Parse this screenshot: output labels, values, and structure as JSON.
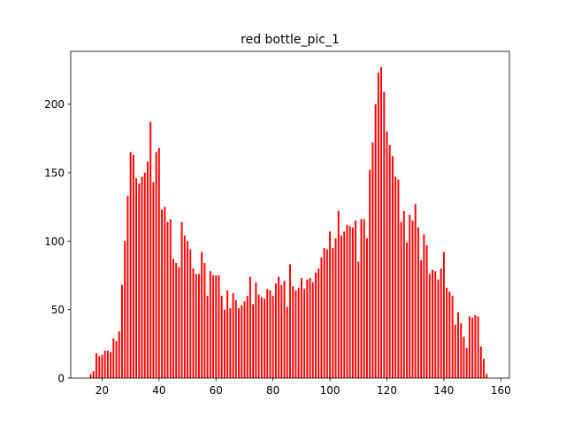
{
  "chart_data": {
    "type": "bar",
    "title": "red bottle_pic_1",
    "color": "#ff0000",
    "x": [
      16,
      17,
      18,
      19,
      20,
      21,
      22,
      23,
      24,
      25,
      26,
      27,
      28,
      29,
      30,
      31,
      32,
      33,
      34,
      35,
      36,
      37,
      38,
      39,
      40,
      41,
      42,
      43,
      44,
      45,
      46,
      47,
      48,
      49,
      50,
      51,
      52,
      53,
      54,
      55,
      56,
      57,
      58,
      59,
      60,
      61,
      62,
      63,
      64,
      65,
      66,
      67,
      68,
      69,
      70,
      71,
      72,
      73,
      74,
      75,
      76,
      77,
      78,
      79,
      80,
      81,
      82,
      83,
      84,
      85,
      86,
      87,
      88,
      89,
      90,
      91,
      92,
      93,
      94,
      95,
      96,
      97,
      98,
      99,
      100,
      101,
      102,
      103,
      104,
      105,
      106,
      107,
      108,
      109,
      110,
      111,
      112,
      113,
      114,
      115,
      116,
      117,
      118,
      119,
      120,
      121,
      122,
      123,
      124,
      125,
      126,
      127,
      128,
      129,
      130,
      131,
      132,
      133,
      134,
      135,
      136,
      137,
      138,
      139,
      140,
      141,
      142,
      143,
      144,
      145,
      146,
      147,
      148,
      149,
      150,
      151,
      152,
      153,
      154,
      155
    ],
    "values": [
      3,
      5,
      18,
      16,
      17,
      20,
      20,
      19,
      29,
      27,
      34,
      68,
      100,
      133,
      165,
      163,
      146,
      142,
      147,
      150,
      158,
      187,
      143,
      165,
      168,
      123,
      125,
      114,
      116,
      87,
      84,
      81,
      114,
      104,
      100,
      94,
      80,
      76,
      76,
      92,
      84,
      60,
      78,
      75,
      75,
      75,
      60,
      50,
      64,
      51,
      62,
      57,
      51,
      53,
      56,
      60,
      74,
      54,
      70,
      61,
      59,
      58,
      65,
      64,
      60,
      69,
      74,
      68,
      71,
      52,
      83,
      67,
      64,
      66,
      73,
      65,
      72,
      73,
      70,
      77,
      80,
      88,
      95,
      94,
      107,
      95,
      102,
      122,
      104,
      107,
      112,
      111,
      110,
      115,
      85,
      116,
      116,
      102,
      152,
      172,
      200,
      223,
      227,
      209,
      180,
      170,
      162,
      147,
      145,
      114,
      122,
      99,
      119,
      115,
      127,
      110,
      86,
      105,
      97,
      76,
      79,
      78,
      72,
      80,
      92,
      66,
      63,
      60,
      39,
      48,
      40,
      30,
      22,
      45,
      44,
      46,
      45,
      23,
      14,
      3
    ],
    "xlim": [
      9,
      163
    ],
    "ylim": [
      0,
      238.5
    ],
    "xticks": [
      20,
      40,
      60,
      80,
      100,
      120,
      140,
      160
    ],
    "yticks": [
      0,
      50,
      100,
      150,
      200
    ]
  }
}
